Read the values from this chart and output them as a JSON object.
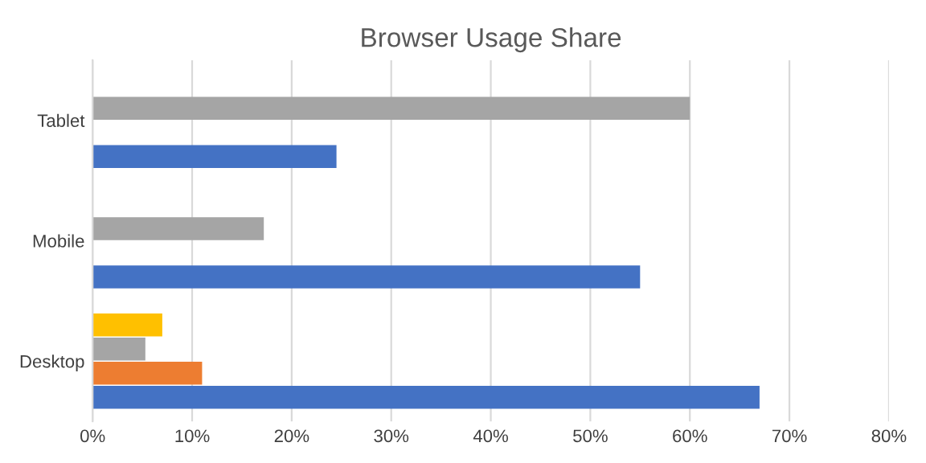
{
  "chart_data": {
    "type": "bar",
    "orientation": "horizontal",
    "title": "Browser Usage Share",
    "categories": [
      "Tablet",
      "Mobile",
      "Desktop"
    ],
    "series": [
      {
        "color": "#4472c4",
        "values": [
          24.5,
          55,
          67
        ]
      },
      {
        "color": "#ed7d31",
        "values": [
          null,
          null,
          11
        ]
      },
      {
        "color": "#a5a5a5",
        "values": [
          60,
          17.2,
          5.3
        ]
      },
      {
        "color": "#ffc000",
        "values": [
          null,
          null,
          7
        ]
      }
    ],
    "xlim": [
      0,
      80
    ],
    "xticks": [
      {
        "value": 0,
        "label": "0%"
      },
      {
        "value": 10,
        "label": "10%"
      },
      {
        "value": 20,
        "label": "20%"
      },
      {
        "value": 30,
        "label": "30%"
      },
      {
        "value": 40,
        "label": "40%"
      },
      {
        "value": 50,
        "label": "50%"
      },
      {
        "value": 60,
        "label": "60%"
      },
      {
        "value": 70,
        "label": "70%"
      },
      {
        "value": 80,
        "label": "80%"
      }
    ],
    "grid": "x"
  }
}
